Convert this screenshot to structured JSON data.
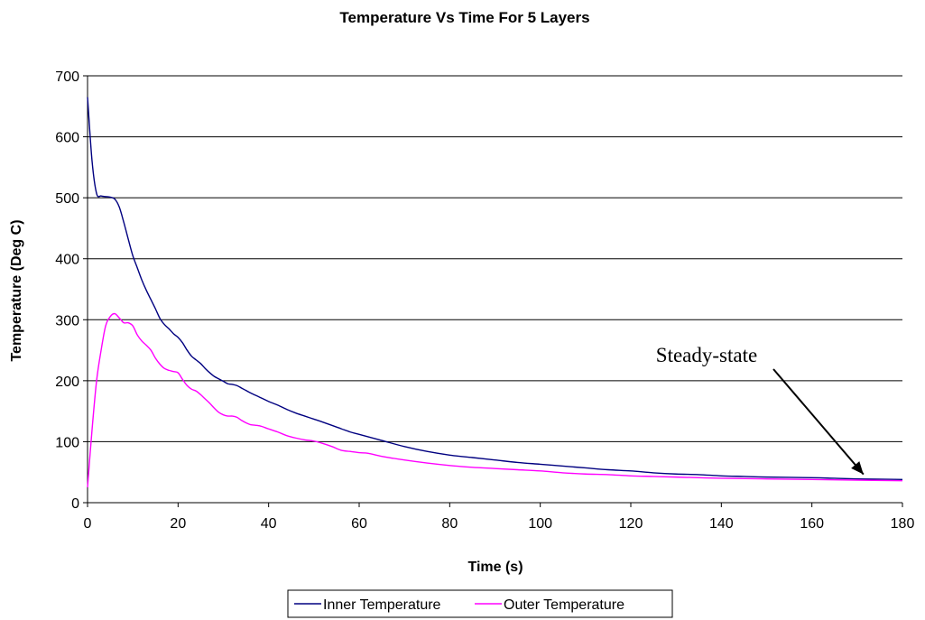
{
  "chart_data": {
    "type": "line",
    "title": "Temperature Vs Time For 5 Layers",
    "xlabel": "Time (s)",
    "ylabel": "Temperature (Deg C)",
    "xlim": [
      0,
      180
    ],
    "ylim": [
      0,
      700
    ],
    "x_ticks": [
      0,
      20,
      40,
      60,
      80,
      100,
      120,
      140,
      160,
      180
    ],
    "y_ticks": [
      0,
      100,
      200,
      300,
      400,
      500,
      600,
      700
    ],
    "grid": "horizontal",
    "legend_position": "bottom",
    "annotation": {
      "text": "Steady-state",
      "points_to": [
        170,
        39
      ]
    },
    "series": [
      {
        "name": "Inner Temperature",
        "color": "#000080",
        "points": [
          [
            0,
            665
          ],
          [
            1,
            560
          ],
          [
            2,
            507
          ],
          [
            3,
            503
          ],
          [
            4,
            502
          ],
          [
            5,
            501
          ],
          [
            6,
            498
          ],
          [
            7,
            485
          ],
          [
            8,
            460
          ],
          [
            9,
            432
          ],
          [
            10,
            405
          ],
          [
            11,
            385
          ],
          [
            12,
            365
          ],
          [
            13,
            348
          ],
          [
            14,
            333
          ],
          [
            15,
            318
          ],
          [
            16,
            302
          ],
          [
            17,
            292
          ],
          [
            18,
            285
          ],
          [
            19,
            277
          ],
          [
            20,
            271
          ],
          [
            21,
            262
          ],
          [
            22,
            250
          ],
          [
            23,
            240
          ],
          [
            24,
            234
          ],
          [
            25,
            228
          ],
          [
            26,
            220
          ],
          [
            27,
            213
          ],
          [
            28,
            207
          ],
          [
            29,
            203
          ],
          [
            30,
            199
          ],
          [
            31,
            195
          ],
          [
            32,
            194
          ],
          [
            33,
            192
          ],
          [
            34,
            188
          ],
          [
            35,
            184
          ],
          [
            36,
            180
          ],
          [
            38,
            173
          ],
          [
            40,
            166
          ],
          [
            42,
            160
          ],
          [
            44,
            153
          ],
          [
            46,
            147
          ],
          [
            48,
            142
          ],
          [
            50,
            137
          ],
          [
            52,
            132
          ],
          [
            55,
            124
          ],
          [
            58,
            116
          ],
          [
            60,
            112
          ],
          [
            65,
            102
          ],
          [
            70,
            92
          ],
          [
            75,
            84
          ],
          [
            80,
            78
          ],
          [
            85,
            74
          ],
          [
            90,
            70
          ],
          [
            95,
            66
          ],
          [
            100,
            63
          ],
          [
            105,
            60
          ],
          [
            110,
            57
          ],
          [
            115,
            54
          ],
          [
            120,
            52
          ],
          [
            125,
            49
          ],
          [
            130,
            47
          ],
          [
            135,
            46
          ],
          [
            140,
            44
          ],
          [
            145,
            43
          ],
          [
            150,
            42
          ],
          [
            160,
            41
          ],
          [
            165,
            40
          ],
          [
            170,
            39
          ],
          [
            180,
            38
          ]
        ]
      },
      {
        "name": "Outer Temperature",
        "color": "#FF00FF",
        "points": [
          [
            0,
            25
          ],
          [
            1,
            120
          ],
          [
            2,
            200
          ],
          [
            3,
            250
          ],
          [
            4,
            290
          ],
          [
            5,
            305
          ],
          [
            6,
            310
          ],
          [
            7,
            303
          ],
          [
            8,
            295
          ],
          [
            9,
            295
          ],
          [
            10,
            290
          ],
          [
            11,
            275
          ],
          [
            12,
            265
          ],
          [
            13,
            258
          ],
          [
            14,
            250
          ],
          [
            15,
            237
          ],
          [
            16,
            227
          ],
          [
            17,
            220
          ],
          [
            18,
            217
          ],
          [
            19,
            215
          ],
          [
            20,
            213
          ],
          [
            21,
            202
          ],
          [
            22,
            192
          ],
          [
            23,
            186
          ],
          [
            24,
            183
          ],
          [
            25,
            177
          ],
          [
            26,
            170
          ],
          [
            27,
            163
          ],
          [
            28,
            155
          ],
          [
            29,
            148
          ],
          [
            30,
            144
          ],
          [
            31,
            142
          ],
          [
            32,
            142
          ],
          [
            33,
            140
          ],
          [
            34,
            135
          ],
          [
            35,
            131
          ],
          [
            36,
            128
          ],
          [
            38,
            126
          ],
          [
            40,
            121
          ],
          [
            42,
            116
          ],
          [
            44,
            110
          ],
          [
            46,
            106
          ],
          [
            48,
            103
          ],
          [
            50,
            101
          ],
          [
            52,
            97
          ],
          [
            54,
            92
          ],
          [
            56,
            86
          ],
          [
            58,
            84
          ],
          [
            60,
            82
          ],
          [
            62,
            81
          ],
          [
            65,
            76
          ],
          [
            70,
            70
          ],
          [
            75,
            65
          ],
          [
            80,
            61
          ],
          [
            85,
            58
          ],
          [
            90,
            56
          ],
          [
            95,
            54
          ],
          [
            100,
            52
          ],
          [
            105,
            49
          ],
          [
            110,
            47
          ],
          [
            115,
            46
          ],
          [
            120,
            44
          ],
          [
            125,
            43
          ],
          [
            130,
            42
          ],
          [
            140,
            40
          ],
          [
            150,
            39
          ],
          [
            160,
            38
          ],
          [
            170,
            37
          ],
          [
            180,
            36
          ]
        ]
      }
    ]
  }
}
